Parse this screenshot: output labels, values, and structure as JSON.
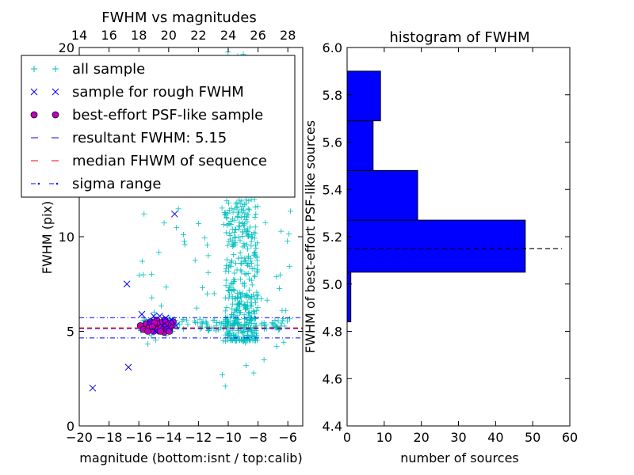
{
  "chart_data": [
    {
      "type": "scatter",
      "title": "FWHM vs magnitudes",
      "xlabel": "magnitude (bottom:isnt / top:calib)",
      "ylabel": "FWHM (pix)",
      "xlim": [
        -20,
        -5
      ],
      "ylim": [
        0,
        20
      ],
      "x_ticks": [
        "−20",
        "−18",
        "−16",
        "−14",
        "−12",
        "−10",
        "−8",
        "−6"
      ],
      "x_tick_values": [
        -20,
        -18,
        -16,
        -14,
        -12,
        -10,
        -8,
        -6
      ],
      "y_ticks": [
        "0",
        "5",
        "10",
        "20"
      ],
      "y_tick_values": [
        0,
        5,
        10,
        20
      ],
      "top_axis_ticks": [
        "14",
        "16",
        "18",
        "20",
        "22",
        "24",
        "26",
        "28"
      ],
      "top_axis_values": [
        14,
        16,
        18,
        20,
        22,
        24,
        26,
        28
      ],
      "top_axis_offset": 34,
      "legend": {
        "position": "upper-left",
        "entries": [
          "all sample",
          "sample for rough FWHM",
          "best-effort PSF-like sample",
          "resultant FWHM: 5.15",
          "median FHWM of sequence",
          "sigma range"
        ]
      },
      "colors": {
        "all_sample": "#00bfbf",
        "rough_sample": "#0000ff",
        "psf_sample": "#bf00bf",
        "resultant": "#0000ff",
        "median": "#ff0000",
        "sigma": "#0000ff"
      },
      "resultant_fwhm": 5.15,
      "median_fwhm": 5.18,
      "sigma_range": [
        4.65,
        5.72
      ],
      "series": [
        {
          "name": "sample for rough FWHM",
          "points": [
            [
              -19.1,
              2.0
            ],
            [
              -16.7,
              3.1
            ],
            [
              -16.8,
              7.5
            ],
            [
              -13.6,
              11.2
            ],
            [
              -15.8,
              5.9
            ],
            [
              -15.0,
              5.8
            ],
            [
              -14.6,
              5.8
            ],
            [
              -14.2,
              5.7
            ],
            [
              -13.8,
              5.6
            ],
            [
              -14.9,
              5.0
            ],
            [
              -14.4,
              5.3
            ],
            [
              -15.3,
              5.5
            ],
            [
              -14.0,
              5.2
            ],
            [
              -13.5,
              5.3
            ]
          ]
        },
        {
          "name": "best-effort PSF-like sample",
          "points": [
            [
              -15.9,
              5.3
            ],
            [
              -15.7,
              5.1
            ],
            [
              -15.5,
              5.4
            ],
            [
              -15.3,
              5.2
            ],
            [
              -15.2,
              5.5
            ],
            [
              -15.0,
              5.0
            ],
            [
              -14.9,
              5.3
            ],
            [
              -14.8,
              5.6
            ],
            [
              -14.7,
              5.1
            ],
            [
              -14.6,
              5.4
            ],
            [
              -14.5,
              5.2
            ],
            [
              -14.4,
              5.5
            ],
            [
              -14.3,
              4.95
            ],
            [
              -14.2,
              5.3
            ],
            [
              -14.1,
              5.1
            ],
            [
              -14.0,
              5.45
            ],
            [
              -13.9,
              5.2
            ],
            [
              -13.8,
              5.35
            ],
            [
              -13.7,
              5.5
            ],
            [
              -15.4,
              5.0
            ],
            [
              -14.95,
              5.45
            ],
            [
              -14.55,
              5.0
            ],
            [
              -14.25,
              5.6
            ],
            [
              -13.95,
              5.0
            ],
            [
              -15.1,
              5.25
            ]
          ]
        }
      ]
    },
    {
      "type": "bar",
      "orientation": "horizontal",
      "title": "histogram of FWHM",
      "xlabel": "number of sources",
      "ylabel": "FWHM of best-effort PSF-like sources",
      "xlim": [
        0,
        60
      ],
      "ylim": [
        4.4,
        6.0
      ],
      "x_ticks": [
        "0",
        "10",
        "20",
        "30",
        "40",
        "50",
        "60"
      ],
      "x_tick_values": [
        0,
        10,
        20,
        30,
        40,
        50,
        60
      ],
      "y_ticks": [
        "4.4",
        "4.6",
        "4.8",
        "5.0",
        "5.2",
        "5.4",
        "5.6",
        "5.8",
        "6.0"
      ],
      "y_tick_values": [
        4.4,
        4.6,
        4.8,
        5.0,
        5.2,
        5.4,
        5.6,
        5.8,
        6.0
      ],
      "bar_color": "#0000ff",
      "bins": [
        [
          4.84,
          5.05
        ],
        [
          5.05,
          5.27
        ],
        [
          5.27,
          5.48
        ],
        [
          5.48,
          5.69
        ],
        [
          5.69,
          5.9
        ]
      ],
      "values": [
        1,
        48,
        19,
        7,
        9
      ],
      "resultant_fwhm": 5.15
    }
  ]
}
